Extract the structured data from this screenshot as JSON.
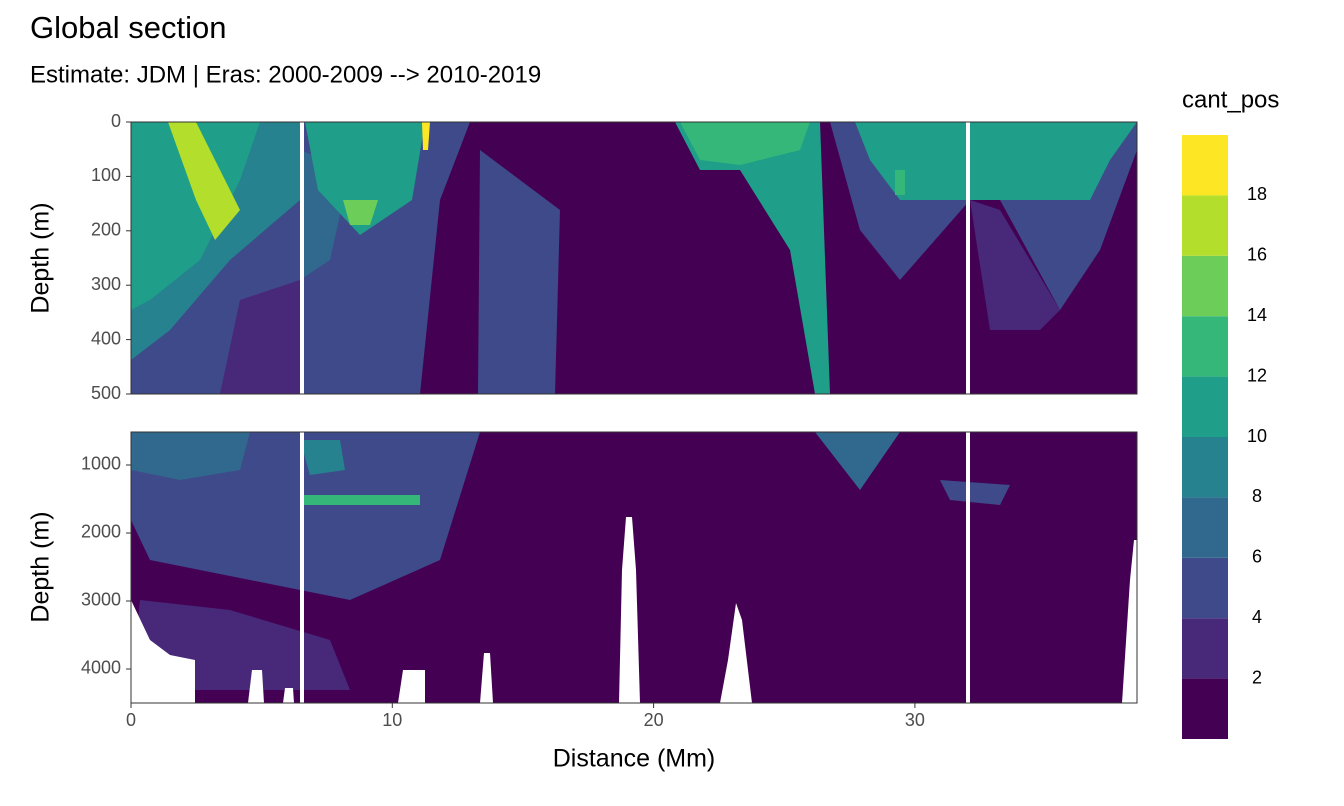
{
  "chart_data": {
    "type": "contour",
    "title": "Global section",
    "subtitle": "Estimate: JDM  | Eras: 2000-2009 --> 2010-2019",
    "xlabel": "Distance (Mm)",
    "ylabel": "Depth (m)",
    "xlim": [
      0,
      38.5
    ],
    "xticks": [
      0,
      10,
      20,
      30
    ],
    "panels": [
      {
        "ylim": [
          0,
          500
        ],
        "yticks": [
          0,
          100,
          200,
          300,
          400,
          500
        ]
      },
      {
        "ylim": [
          515,
          4500
        ],
        "yticks": [
          1000,
          2000,
          3000,
          4000
        ]
      }
    ],
    "legend": {
      "title": "cant_pos",
      "lim": [
        0,
        20
      ],
      "ticks": [
        2,
        4,
        6,
        8,
        10,
        12,
        14,
        16,
        18
      ],
      "colors": [
        "#440154",
        "#482878",
        "#3E4A89",
        "#31688E",
        "#26828E",
        "#1F9E89",
        "#35B779",
        "#6DCD59",
        "#B4DE2C",
        "#FDE725"
      ]
    }
  }
}
